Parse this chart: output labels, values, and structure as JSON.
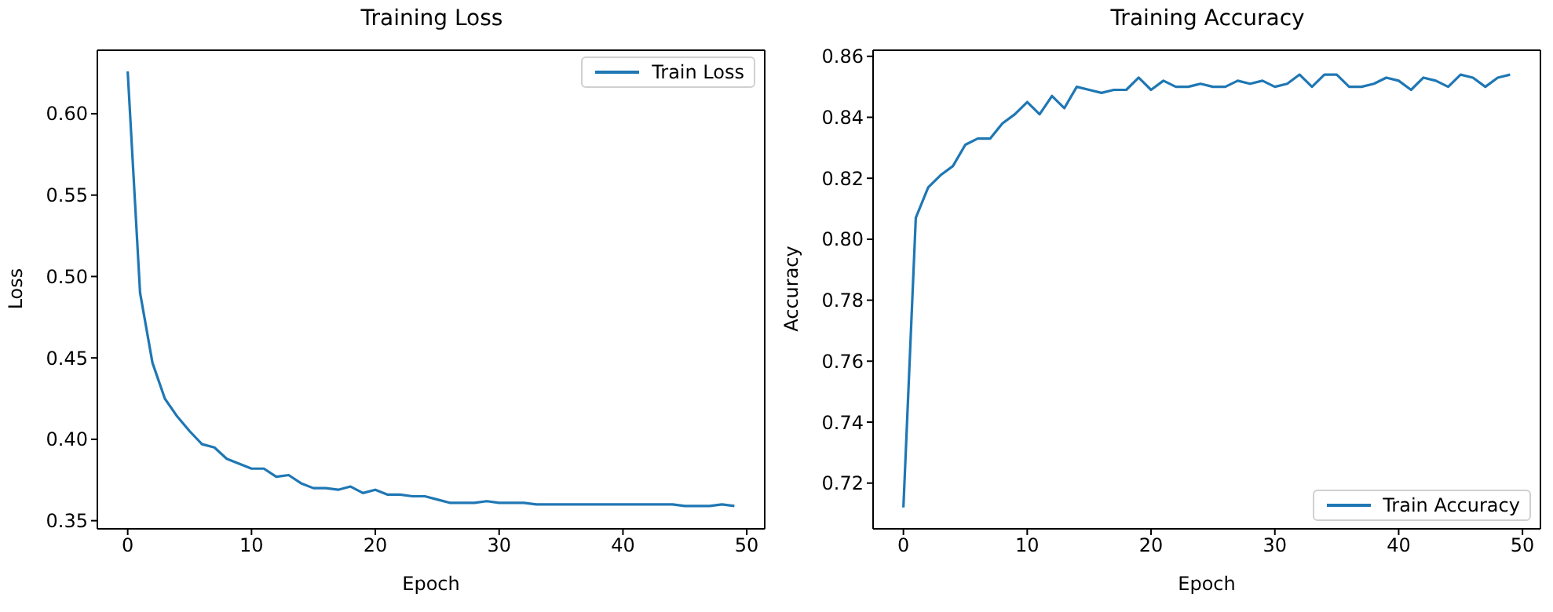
{
  "chart_data": [
    {
      "type": "line",
      "title": "Training Loss",
      "xlabel": "Epoch",
      "ylabel": "Loss",
      "x": [
        0,
        1,
        2,
        3,
        4,
        5,
        6,
        7,
        8,
        9,
        10,
        11,
        12,
        13,
        14,
        15,
        16,
        17,
        18,
        19,
        20,
        21,
        22,
        23,
        24,
        25,
        26,
        27,
        28,
        29,
        30,
        31,
        32,
        33,
        34,
        35,
        36,
        37,
        38,
        39,
        40,
        41,
        42,
        43,
        44,
        45,
        46,
        47,
        48,
        49
      ],
      "series": [
        {
          "name": "Train Loss",
          "color": "#1f77b4",
          "values": [
            0.626,
            0.49,
            0.447,
            0.425,
            0.414,
            0.405,
            0.397,
            0.395,
            0.388,
            0.385,
            0.382,
            0.382,
            0.377,
            0.378,
            0.373,
            0.37,
            0.37,
            0.369,
            0.371,
            0.367,
            0.369,
            0.366,
            0.366,
            0.365,
            0.365,
            0.363,
            0.361,
            0.361,
            0.361,
            0.362,
            0.361,
            0.361,
            0.361,
            0.36,
            0.36,
            0.36,
            0.36,
            0.36,
            0.36,
            0.36,
            0.36,
            0.36,
            0.36,
            0.36,
            0.36,
            0.359,
            0.359,
            0.359,
            0.36,
            0.359
          ]
        }
      ],
      "xlim": [
        -2.45,
        51.45
      ],
      "xticks": [
        0,
        10,
        20,
        30,
        40,
        50
      ],
      "ylim": [
        0.345,
        0.639
      ],
      "yticks": [
        {
          "value": 0.35,
          "label": "0.35"
        },
        {
          "value": 0.4,
          "label": "0.40"
        },
        {
          "value": 0.45,
          "label": "0.45"
        },
        {
          "value": 0.5,
          "label": "0.50"
        },
        {
          "value": 0.55,
          "label": "0.55"
        },
        {
          "value": 0.6,
          "label": "0.60"
        }
      ],
      "legend": "top right",
      "marker": "none"
    },
    {
      "type": "line",
      "title": "Training Accuracy",
      "xlabel": "Epoch",
      "ylabel": "Accuracy",
      "x": [
        0,
        1,
        2,
        3,
        4,
        5,
        6,
        7,
        8,
        9,
        10,
        11,
        12,
        13,
        14,
        15,
        16,
        17,
        18,
        19,
        20,
        21,
        22,
        23,
        24,
        25,
        26,
        27,
        28,
        29,
        30,
        31,
        32,
        33,
        34,
        35,
        36,
        37,
        38,
        39,
        40,
        41,
        42,
        43,
        44,
        45,
        46,
        47,
        48,
        49
      ],
      "series": [
        {
          "name": "Train Accuracy",
          "color": "#1f77b4",
          "values": [
            0.712,
            0.807,
            0.817,
            0.821,
            0.824,
            0.831,
            0.833,
            0.833,
            0.838,
            0.841,
            0.845,
            0.841,
            0.847,
            0.843,
            0.85,
            0.849,
            0.848,
            0.849,
            0.849,
            0.853,
            0.849,
            0.852,
            0.85,
            0.85,
            0.851,
            0.85,
            0.85,
            0.852,
            0.851,
            0.852,
            0.85,
            0.851,
            0.854,
            0.85,
            0.854,
            0.854,
            0.85,
            0.85,
            0.851,
            0.853,
            0.852,
            0.849,
            0.853,
            0.852,
            0.85,
            0.854,
            0.853,
            0.85,
            0.853,
            0.854
          ]
        }
      ],
      "xlim": [
        -2.45,
        51.45
      ],
      "xticks": [
        0,
        10,
        20,
        30,
        40,
        50
      ],
      "ylim": [
        0.705,
        0.862
      ],
      "yticks": [
        {
          "value": 0.72,
          "label": "0.72"
        },
        {
          "value": 0.74,
          "label": "0.74"
        },
        {
          "value": 0.76,
          "label": "0.76"
        },
        {
          "value": 0.78,
          "label": "0.78"
        },
        {
          "value": 0.8,
          "label": "0.80"
        },
        {
          "value": 0.82,
          "label": "0.82"
        },
        {
          "value": 0.84,
          "label": "0.84"
        },
        {
          "value": 0.86,
          "label": "0.86"
        }
      ],
      "legend": "bottom right",
      "marker": "none"
    }
  ]
}
